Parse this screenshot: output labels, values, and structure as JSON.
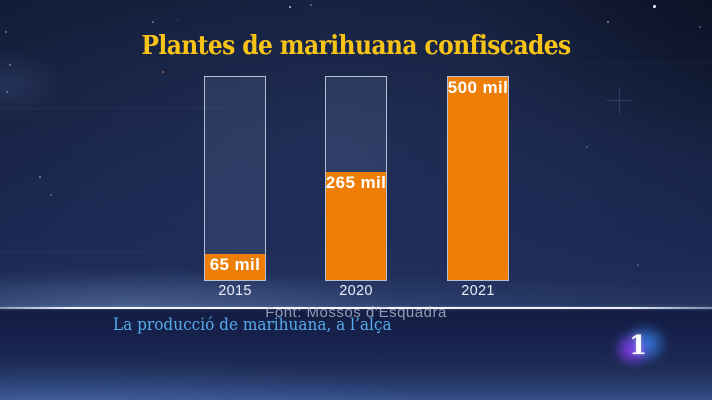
{
  "channel": {
    "logo_text": "1"
  },
  "chart_data": {
    "type": "bar",
    "title": "Plantes de marihuana confiscades",
    "source": "Font: Mossos d’Esquadra",
    "categories": [
      "2015",
      "2020",
      "2021"
    ],
    "values": [
      65,
      265,
      500
    ],
    "value_labels": [
      "65 mil",
      "265 mil",
      "500 mil"
    ],
    "ylim": [
      0,
      500
    ],
    "grid": false,
    "legend_position": "none",
    "bar_color": "#ee7e05",
    "title_color": "#f7c316",
    "background_color": "#1b2850"
  },
  "lower_third": {
    "caption": "La producció de marihuana, a l’alça",
    "caption_color": "#55ace8"
  }
}
